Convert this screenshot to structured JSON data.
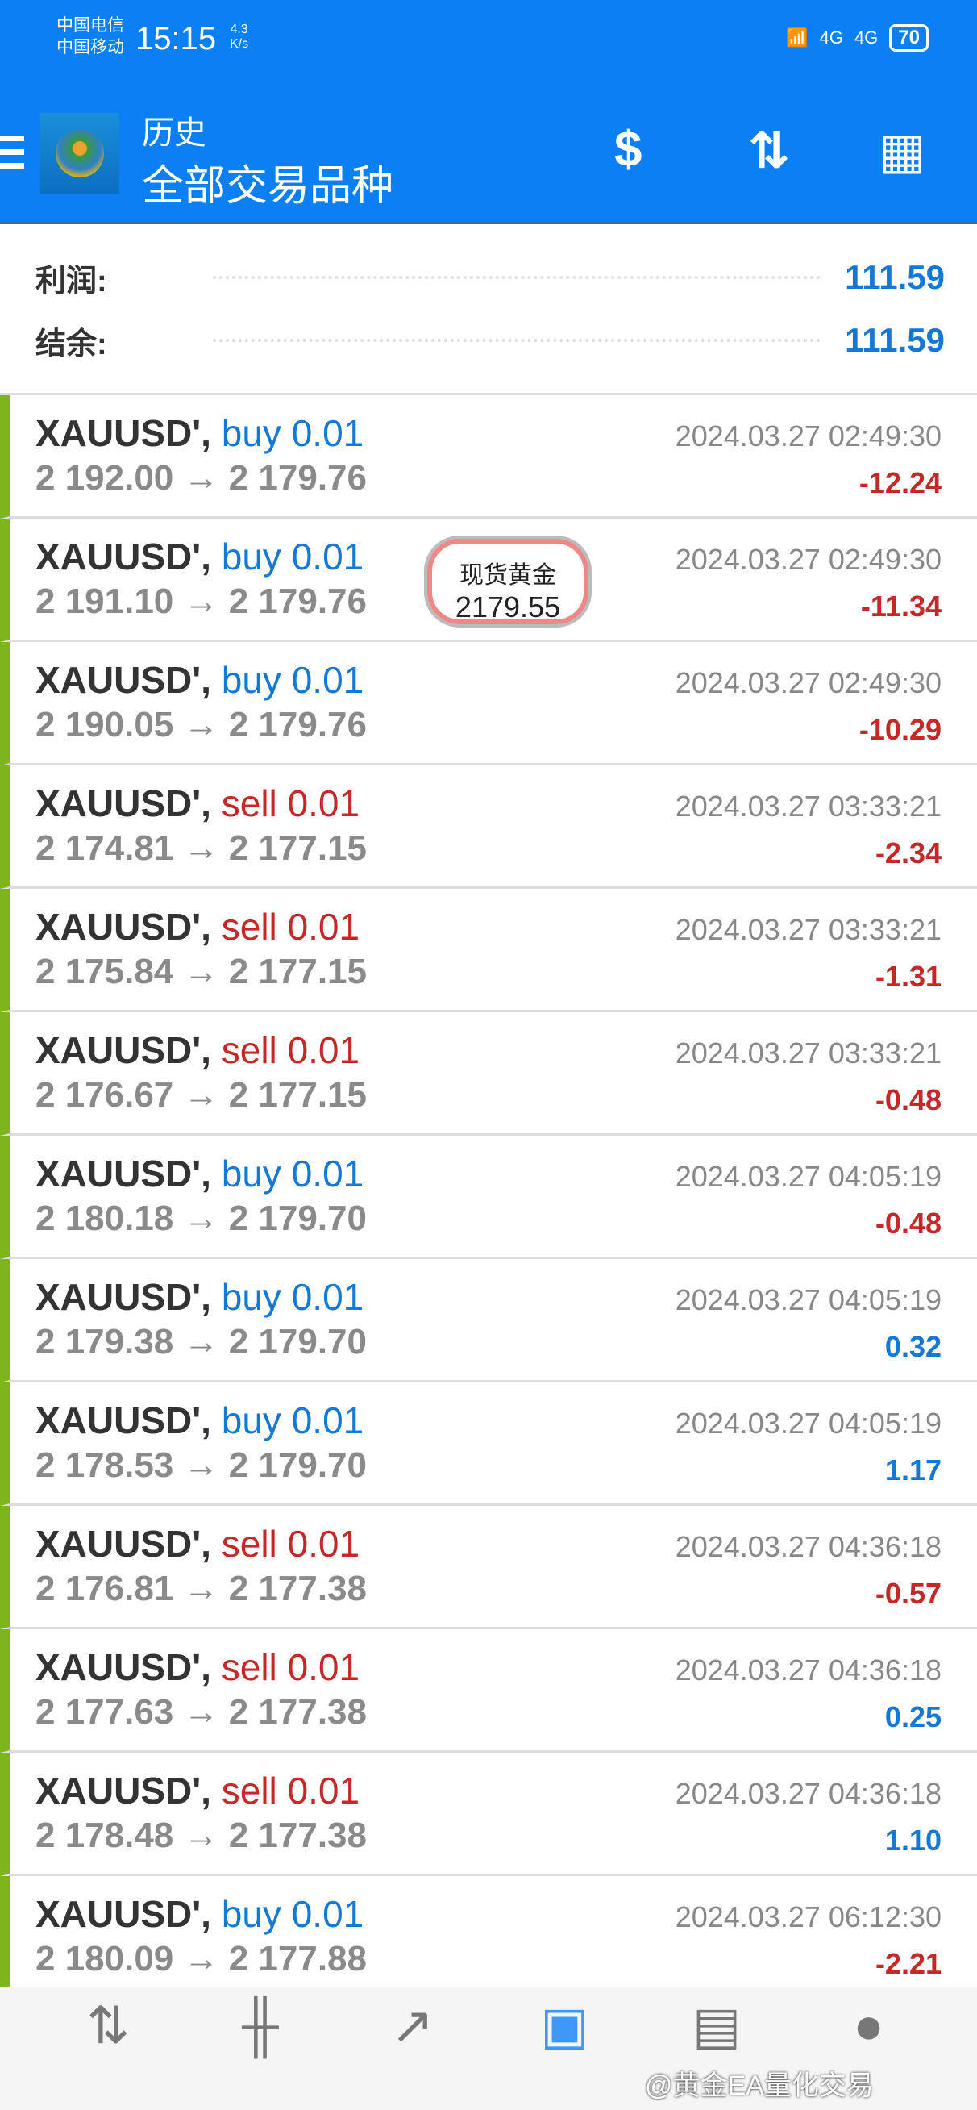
{
  "status_bar": {
    "carrier1": "中国电信",
    "carrier2": "中国移动",
    "time": "15:15",
    "speed": "4.3",
    "speed_unit": "K/s",
    "network1": "4G",
    "network2": "4G",
    "battery": "70"
  },
  "header": {
    "title": "历史",
    "subtitle": "全部交易品种"
  },
  "summary": {
    "profit_label": "利润:",
    "profit_value": "111.59",
    "balance_label": "结余:",
    "balance_value": "111.59"
  },
  "colors": {
    "buy": "#1478d4",
    "sell": "#c62828",
    "header": "#0b80f2"
  },
  "trades": [
    {
      "symbol": "XAUUSD',",
      "type": "buy",
      "volume": "0.01",
      "prices": "2 192.00 → 2 179.76",
      "time": "2024.03.27 02:49:30",
      "profit": "-12.24"
    },
    {
      "symbol": "XAUUSD',",
      "type": "buy",
      "volume": "0.01",
      "prices": "2 191.10 → 2 179.76",
      "time": "2024.03.27 02:49:30",
      "profit": "-11.34"
    },
    {
      "symbol": "XAUUSD',",
      "type": "buy",
      "volume": "0.01",
      "prices": "2 190.05 → 2 179.76",
      "time": "2024.03.27 02:49:30",
      "profit": "-10.29"
    },
    {
      "symbol": "XAUUSD',",
      "type": "sell",
      "volume": "0.01",
      "prices": "2 174.81 → 2 177.15",
      "time": "2024.03.27 03:33:21",
      "profit": "-2.34"
    },
    {
      "symbol": "XAUUSD',",
      "type": "sell",
      "volume": "0.01",
      "prices": "2 175.84 → 2 177.15",
      "time": "2024.03.27 03:33:21",
      "profit": "-1.31"
    },
    {
      "symbol": "XAUUSD',",
      "type": "sell",
      "volume": "0.01",
      "prices": "2 176.67 → 2 177.15",
      "time": "2024.03.27 03:33:21",
      "profit": "-0.48"
    },
    {
      "symbol": "XAUUSD',",
      "type": "buy",
      "volume": "0.01",
      "prices": "2 180.18 → 2 179.70",
      "time": "2024.03.27 04:05:19",
      "profit": "-0.48"
    },
    {
      "symbol": "XAUUSD',",
      "type": "buy",
      "volume": "0.01",
      "prices": "2 179.38 → 2 179.70",
      "time": "2024.03.27 04:05:19",
      "profit": "0.32"
    },
    {
      "symbol": "XAUUSD',",
      "type": "buy",
      "volume": "0.01",
      "prices": "2 178.53 → 2 179.70",
      "time": "2024.03.27 04:05:19",
      "profit": "1.17"
    },
    {
      "symbol": "XAUUSD',",
      "type": "sell",
      "volume": "0.01",
      "prices": "2 176.81 → 2 177.38",
      "time": "2024.03.27 04:36:18",
      "profit": "-0.57"
    },
    {
      "symbol": "XAUUSD',",
      "type": "sell",
      "volume": "0.01",
      "prices": "2 177.63 → 2 177.38",
      "time": "2024.03.27 04:36:18",
      "profit": "0.25"
    },
    {
      "symbol": "XAUUSD',",
      "type": "sell",
      "volume": "0.01",
      "prices": "2 178.48 → 2 177.38",
      "time": "2024.03.27 04:36:18",
      "profit": "1.10"
    },
    {
      "symbol": "XAUUSD',",
      "type": "buy",
      "volume": "0.01",
      "prices": "2 180.09 → 2 177.88",
      "time": "2024.03.27 06:12:30",
      "profit": "-2.21"
    }
  ],
  "floating_widget": {
    "label": "现货黄金",
    "price": "2179.55"
  },
  "nav": {
    "items": [
      "quotes-icon",
      "chart-icon",
      "trade-icon",
      "history-icon",
      "messages-icon",
      "chat-icon"
    ],
    "active": "history-icon"
  },
  "watermark": "@黄金EA量化交易"
}
